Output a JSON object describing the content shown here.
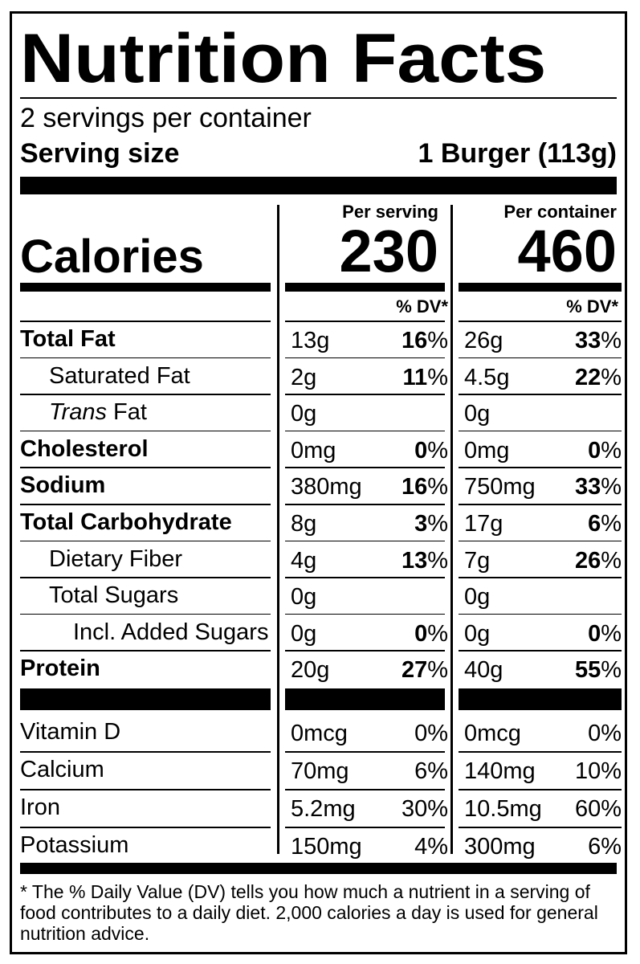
{
  "title": "Nutrition Facts",
  "servings_per_container": "2 servings per container",
  "serving_size_label": "Serving size",
  "serving_size_value": "1 Burger (113g)",
  "per_serving_label": "Per serving",
  "per_container_label": "Per container",
  "calories_label": "Calories",
  "calories_serving": "230",
  "calories_container": "460",
  "dv_header": "% DV*",
  "nutrients": [
    {
      "name": "Total Fat",
      "bold": true,
      "indent": 0,
      "s_amt": "13g",
      "s_pct": "16",
      "c_amt": "26g",
      "c_pct": "33"
    },
    {
      "name": "Saturated Fat",
      "bold": false,
      "indent": 1,
      "s_amt": "2g",
      "s_pct": "11",
      "c_amt": "4.5g",
      "c_pct": "22"
    },
    {
      "name": "Trans Fat",
      "bold": false,
      "indent": 1,
      "italic_prefix": "Trans",
      "s_amt": "0g",
      "s_pct": "",
      "c_amt": "0g",
      "c_pct": ""
    },
    {
      "name": "Cholesterol",
      "bold": true,
      "indent": 0,
      "s_amt": "0mg",
      "s_pct": "0",
      "c_amt": "0mg",
      "c_pct": "0"
    },
    {
      "name": "Sodium",
      "bold": true,
      "indent": 0,
      "s_amt": "380mg",
      "s_pct": "16",
      "c_amt": "750mg",
      "c_pct": "33"
    },
    {
      "name": "Total Carbohydrate",
      "bold": true,
      "indent": 0,
      "s_amt": "8g",
      "s_pct": "3",
      "c_amt": "17g",
      "c_pct": "6"
    },
    {
      "name": "Dietary Fiber",
      "bold": false,
      "indent": 1,
      "s_amt": "4g",
      "s_pct": "13",
      "c_amt": "7g",
      "c_pct": "26"
    },
    {
      "name": "Total Sugars",
      "bold": false,
      "indent": 1,
      "s_amt": "0g",
      "s_pct": "",
      "c_amt": "0g",
      "c_pct": ""
    },
    {
      "name": "Incl. Added Sugars",
      "bold": false,
      "indent": 2,
      "s_amt": "0g",
      "s_pct": "0",
      "c_amt": "0g",
      "c_pct": "0"
    },
    {
      "name": "Protein",
      "bold": true,
      "indent": 0,
      "s_amt": "20g",
      "s_pct": "27",
      "c_amt": "40g",
      "c_pct": "55"
    }
  ],
  "vitamins": [
    {
      "name": "Vitamin D",
      "s_amt": "0mcg",
      "s_pct": "0%",
      "c_amt": "0mcg",
      "c_pct": "0%"
    },
    {
      "name": "Calcium",
      "s_amt": "70mg",
      "s_pct": "6%",
      "c_amt": "140mg",
      "c_pct": "10%"
    },
    {
      "name": "Iron",
      "s_amt": "5.2mg",
      "s_pct": "30%",
      "c_amt": "10.5mg",
      "c_pct": "60%"
    },
    {
      "name": "Potassium",
      "s_amt": "150mg",
      "s_pct": "4%",
      "c_amt": "300mg",
      "c_pct": "6%"
    }
  ],
  "footnote": "* The % Daily Value (DV) tells you how much a nutrient in a serving of food contributes to a daily diet. 2,000 calories a day is used for general nutrition advice."
}
